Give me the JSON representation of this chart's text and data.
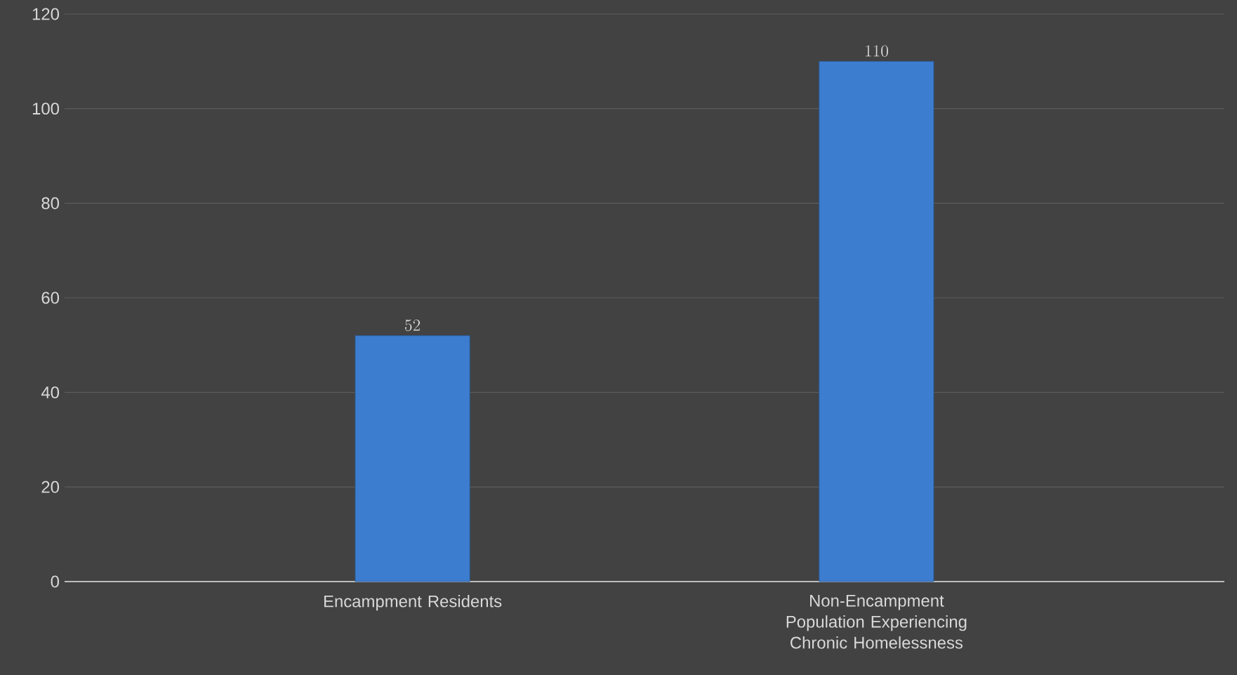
{
  "chart_data": {
    "type": "bar",
    "categories": [
      "Encampment Residents",
      "Non-Encampment Population Experiencing Chronic Homelessness"
    ],
    "values": [
      52,
      110
    ],
    "color": "#3c7dd0",
    "ylim": [
      0,
      120
    ],
    "yticks": [
      0,
      20,
      40,
      60,
      80,
      100,
      120
    ],
    "grid": "y",
    "data_labels": true
  }
}
